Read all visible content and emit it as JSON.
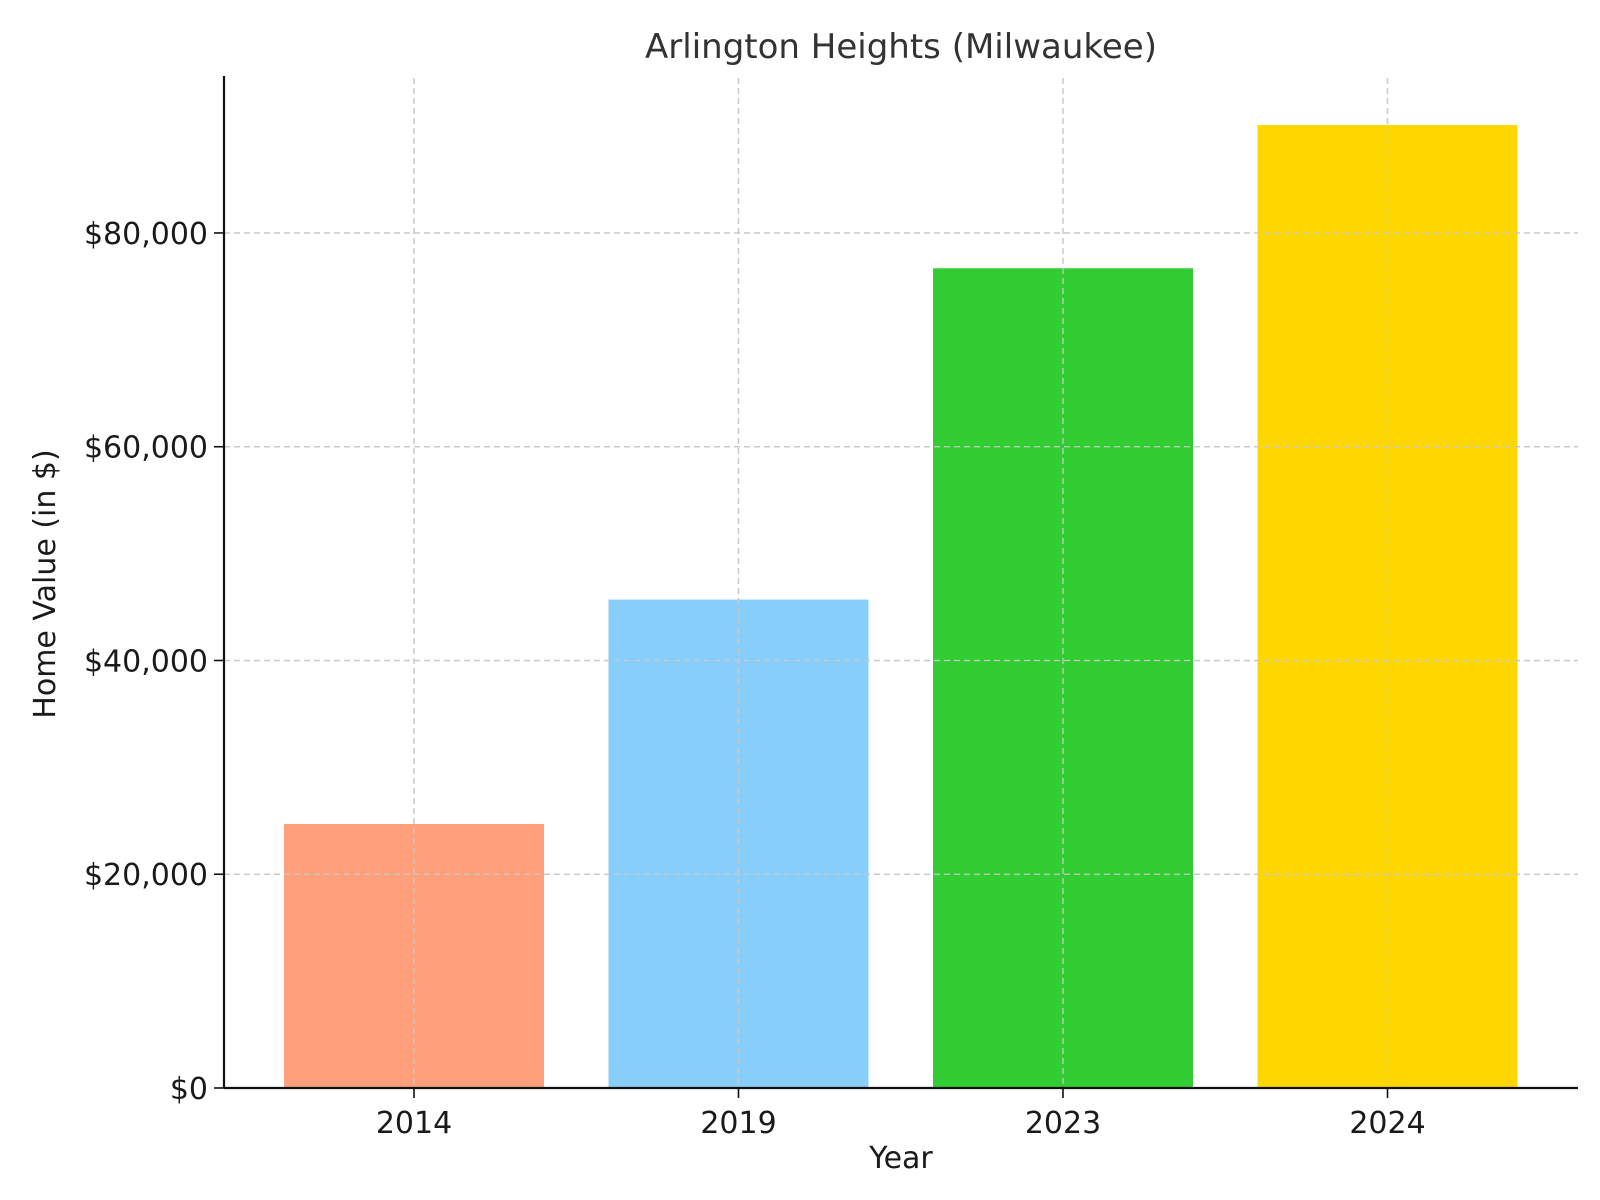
{
  "chart_data": {
    "type": "bar",
    "title": "Arlington Heights (Milwaukee)",
    "xlabel": "Year",
    "ylabel": "Home Value (in $)",
    "categories": [
      "2014",
      "2019",
      "2023",
      "2024"
    ],
    "values": [
      24700,
      45700,
      76700,
      90100
    ],
    "colors": [
      "#FFA07A",
      "#87CEFA",
      "#32CD32",
      "#FFD700"
    ],
    "ylim": [
      0,
      94500
    ],
    "yticks": [
      0,
      20000,
      40000,
      60000,
      80000
    ],
    "ytick_labels": [
      "$0",
      "$20,000",
      "$40,000",
      "$60,000",
      "$80,000"
    ],
    "grid": true,
    "legend": "none"
  }
}
